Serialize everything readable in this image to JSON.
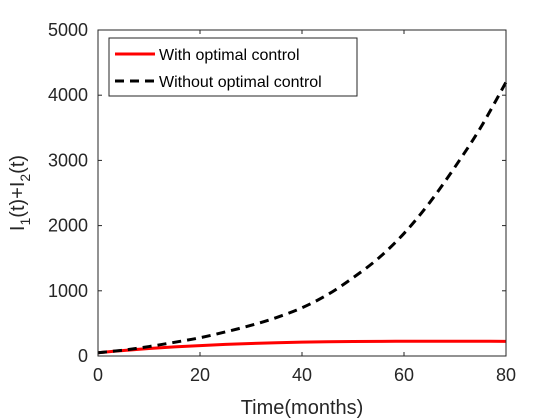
{
  "chart_data": {
    "type": "line",
    "xlabel": "Time(months)",
    "ylabel": {
      "parts": [
        "I",
        "1",
        "(t)+I",
        "2",
        "(t)"
      ]
    },
    "xlim": [
      0,
      80
    ],
    "ylim": [
      0,
      5000
    ],
    "xticks": [
      0,
      20,
      40,
      60,
      80
    ],
    "yticks": [
      0,
      1000,
      2000,
      3000,
      4000,
      5000
    ],
    "xtick_labels": [
      "0",
      "20",
      "40",
      "60",
      "80"
    ],
    "ytick_labels": [
      "0",
      "1000",
      "2000",
      "3000",
      "4000",
      "5000"
    ],
    "grid": false,
    "legend_location": "top-left",
    "series": [
      {
        "name": "With optimal control",
        "color": "#ff0000",
        "style": "solid",
        "x": [
          0,
          5,
          10,
          15,
          20,
          25,
          30,
          35,
          40,
          45,
          50,
          55,
          60,
          65,
          70,
          75,
          80
        ],
        "y": [
          50,
          85,
          115,
          140,
          160,
          178,
          192,
          203,
          212,
          218,
          222,
          225,
          226,
          227,
          227,
          226,
          225
        ]
      },
      {
        "name": "Without optimal control",
        "color": "#000000",
        "style": "dashed",
        "x": [
          0,
          5,
          10,
          15,
          20,
          25,
          30,
          35,
          40,
          45,
          50,
          55,
          60,
          65,
          70,
          75,
          80
        ],
        "y": [
          50,
          90,
          145,
          210,
          280,
          370,
          470,
          590,
          740,
          940,
          1200,
          1500,
          1880,
          2350,
          2900,
          3500,
          4200
        ]
      }
    ]
  }
}
